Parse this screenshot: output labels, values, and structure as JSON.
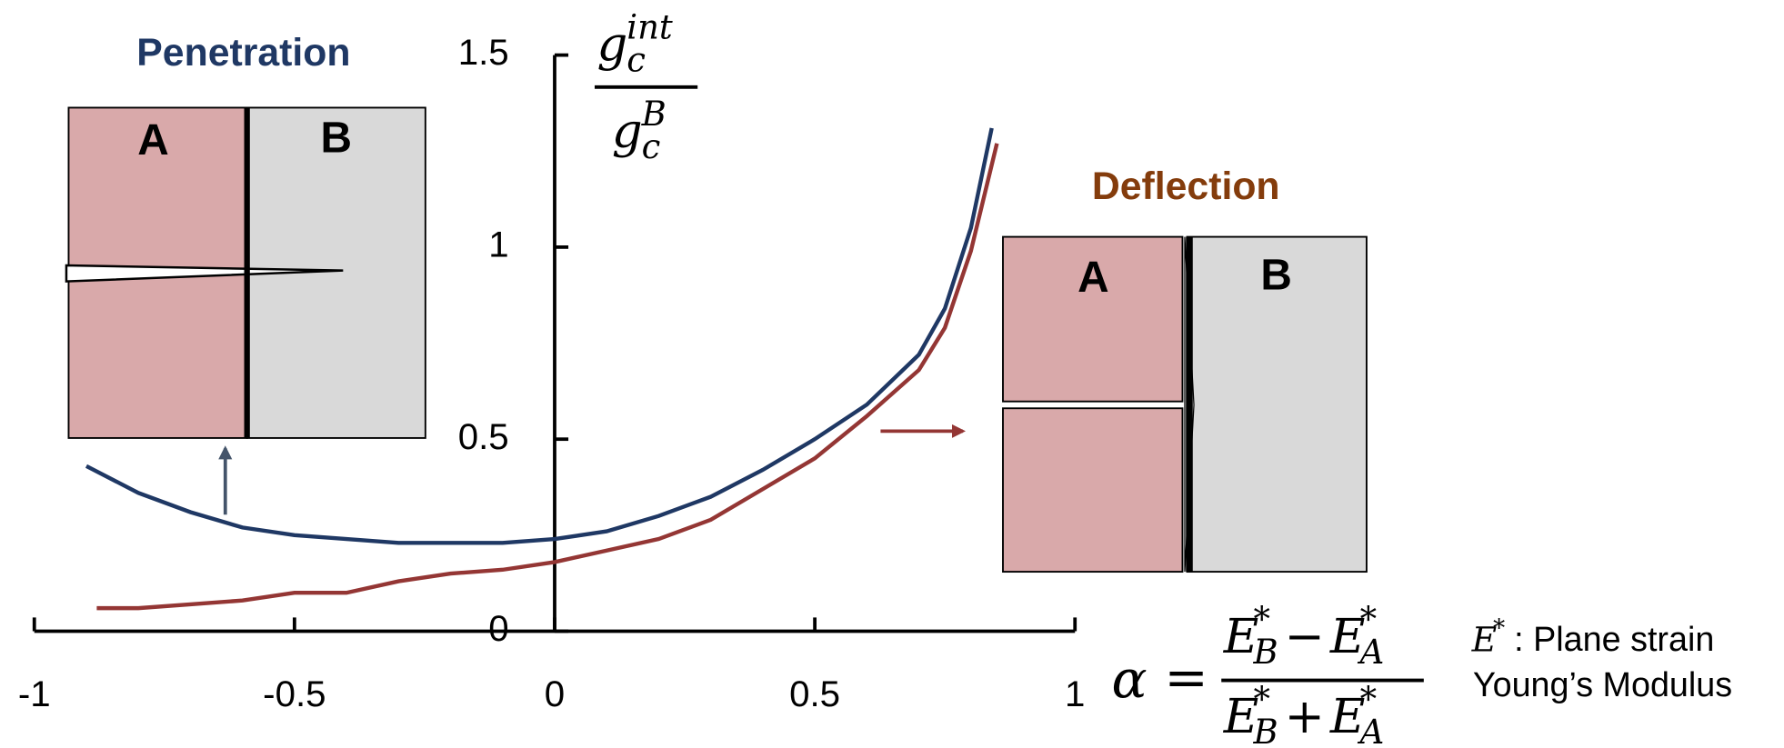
{
  "chart_data": {
    "type": "line",
    "xlim": [
      -1,
      1
    ],
    "xticks": [
      -1,
      -0.5,
      0,
      0.5,
      1
    ],
    "ylim": [
      0,
      1.5
    ],
    "yticks": [
      0,
      0.5,
      1,
      1.5
    ],
    "series": [
      {
        "color": "#1f3864",
        "x": [
          -0.9,
          -0.8,
          -0.7,
          -0.6,
          -0.5,
          -0.4,
          -0.3,
          -0.2,
          -0.1,
          0,
          0.1,
          0.2,
          0.3,
          0.4,
          0.5,
          0.6,
          0.7,
          0.75,
          0.8,
          0.84
        ],
        "values": [
          0.43,
          0.36,
          0.31,
          0.27,
          0.25,
          0.24,
          0.23,
          0.23,
          0.23,
          0.24,
          0.26,
          0.3,
          0.35,
          0.42,
          0.5,
          0.59,
          0.72,
          0.84,
          1.05,
          1.31
        ]
      },
      {
        "color": "#943634",
        "x": [
          -0.88,
          -0.8,
          -0.7,
          -0.6,
          -0.5,
          -0.4,
          -0.3,
          -0.2,
          -0.1,
          0,
          0.1,
          0.2,
          0.3,
          0.4,
          0.5,
          0.6,
          0.7,
          0.75,
          0.8,
          0.85
        ],
        "values": [
          0.06,
          0.06,
          0.07,
          0.08,
          0.1,
          0.1,
          0.13,
          0.15,
          0.16,
          0.18,
          0.21,
          0.24,
          0.29,
          0.37,
          0.45,
          0.56,
          0.68,
          0.79,
          0.99,
          1.27
        ]
      }
    ],
    "ylabel": {
      "num": {
        "base": "g",
        "sub": "c",
        "sup": "int"
      },
      "den": {
        "base": "g",
        "sub": "c",
        "sup": "B"
      }
    },
    "xlabel": {
      "symbol": "α",
      "relation": "=",
      "num": {
        "a": {
          "base": "E",
          "sub": "B",
          "sup": "*"
        },
        "op": "−",
        "b": {
          "base": "E",
          "sub": "A",
          "sup": "*"
        }
      },
      "den": {
        "a": {
          "base": "E",
          "sub": "B",
          "sup": "*"
        },
        "op": "+",
        "b": {
          "base": "E",
          "sub": "A",
          "sup": "*"
        }
      }
    },
    "note": {
      "symbol": {
        "base": "E",
        "sup": "*"
      },
      "text": ": Plane strain",
      "line2": "Young’s Modulus"
    },
    "insets": [
      {
        "title": "Penetration",
        "labels": [
          "A",
          "B"
        ]
      },
      {
        "title": "Deflection",
        "labels": [
          "A",
          "B"
        ]
      }
    ]
  }
}
